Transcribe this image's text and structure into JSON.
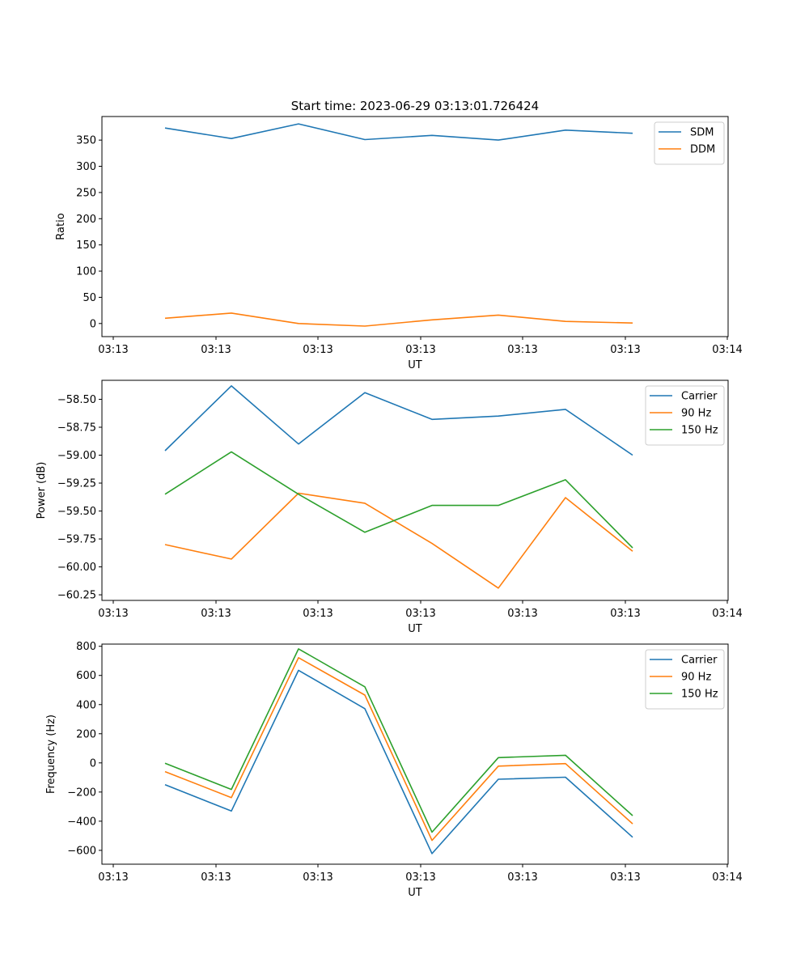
{
  "title": "Start time: 2023-06-29 03:13:01.726424",
  "chart_data": [
    {
      "type": "line",
      "xlabel": "UT",
      "ylabel": "Ratio",
      "x_tick_labels": [
        "03:13",
        "03:13",
        "03:13",
        "03:13",
        "03:13",
        "03:13",
        "03:14"
      ],
      "y_ticks": [
        0,
        50,
        100,
        150,
        200,
        250,
        300,
        350
      ],
      "ylim": [
        -25,
        395
      ],
      "legend_position": "upper right",
      "series": [
        {
          "name": "SDM",
          "color": "#1f77b4",
          "values": [
            373,
            353,
            381,
            351,
            359,
            350,
            369,
            363
          ]
        },
        {
          "name": "DDM",
          "color": "#ff7f0e",
          "values": [
            10,
            20,
            0,
            -5,
            7,
            16,
            4,
            1
          ]
        }
      ]
    },
    {
      "type": "line",
      "xlabel": "UT",
      "ylabel": "Power (dB)",
      "x_tick_labels": [
        "03:13",
        "03:13",
        "03:13",
        "03:13",
        "03:13",
        "03:13",
        "03:14"
      ],
      "y_ticks": [
        -60.25,
        -60.0,
        -59.75,
        -59.5,
        -59.25,
        -59.0,
        -58.75,
        -58.5
      ],
      "y_tick_labels": [
        "−60.25",
        "−60.00",
        "−59.75",
        "−59.50",
        "−59.25",
        "−59.00",
        "−58.75",
        "−58.50"
      ],
      "ylim": [
        -60.3,
        -58.33
      ],
      "legend_position": "upper right",
      "series": [
        {
          "name": "Carrier",
          "color": "#1f77b4",
          "values": [
            -58.96,
            -58.38,
            -58.9,
            -58.44,
            -58.68,
            -58.65,
            -58.59,
            -59.0
          ]
        },
        {
          "name": "90 Hz",
          "color": "#ff7f0e",
          "values": [
            -59.8,
            -59.93,
            -59.34,
            -59.43,
            -59.79,
            -60.19,
            -59.38,
            -59.86
          ]
        },
        {
          "name": "150 Hz",
          "color": "#2ca02c",
          "values": [
            -59.35,
            -58.97,
            -59.35,
            -59.69,
            -59.45,
            -59.45,
            -59.22,
            -59.83
          ]
        }
      ]
    },
    {
      "type": "line",
      "xlabel": "UT",
      "ylabel": "Frequency (Hz)",
      "x_tick_labels": [
        "03:13",
        "03:13",
        "03:13",
        "03:13",
        "03:13",
        "03:13",
        "03:14"
      ],
      "y_ticks": [
        -600,
        -400,
        -200,
        0,
        200,
        400,
        600,
        800
      ],
      "y_tick_labels": [
        "−600",
        "−400",
        "−200",
        "0",
        "200",
        "400",
        "600",
        "800"
      ],
      "ylim": [
        -695,
        815
      ],
      "legend_position": "upper right",
      "series": [
        {
          "name": "Carrier",
          "color": "#1f77b4",
          "values": [
            -150,
            -330,
            635,
            372,
            -622,
            -112,
            -98,
            -510
          ]
        },
        {
          "name": "90 Hz",
          "color": "#ff7f0e",
          "values": [
            -60,
            -238,
            722,
            465,
            -532,
            -22,
            -5,
            -418
          ]
        },
        {
          "name": "150 Hz",
          "color": "#2ca02c",
          "values": [
            -2,
            -182,
            782,
            522,
            -475,
            36,
            52,
            -362
          ]
        }
      ]
    }
  ]
}
